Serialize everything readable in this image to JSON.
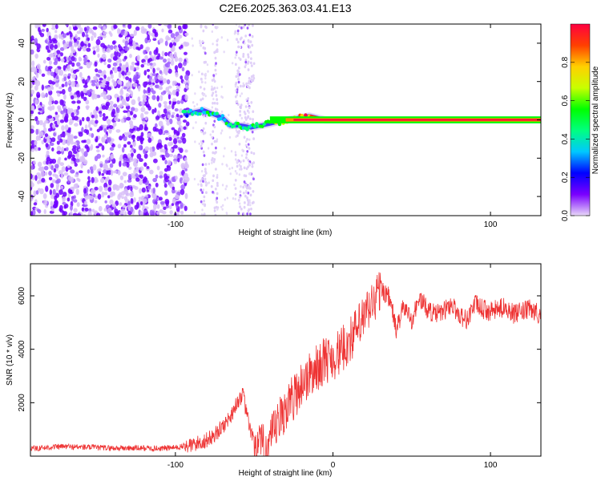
{
  "title": "C2E6.2025.363.03.41.E13",
  "chart_data": [
    {
      "type": "heatmap",
      "name": "spectrogram",
      "xlabel": "Height of straight line (km)",
      "ylabel": "Frequency (Hz)",
      "xlim": [
        -192,
        132
      ],
      "ylim": [
        -50,
        50
      ],
      "x_ticks": [
        -100,
        0,
        100
      ],
      "x_tick_labels": [
        "-100",
        "",
        "100"
      ],
      "y_ticks": [
        -40,
        -20,
        0,
        20,
        40
      ],
      "y_tick_labels": [
        "-40",
        "-20",
        "0",
        "20",
        "40"
      ],
      "colorbar": {
        "label": "Normalized spectral amplitude",
        "range": [
          0,
          1
        ],
        "ticks": [
          0.0,
          0.2,
          0.4,
          0.6,
          0.8
        ],
        "tick_labels": [
          "0.0",
          "0.2",
          "0.4",
          "0.6",
          "0.8"
        ],
        "colors": [
          "#e8d8f8",
          "#7a00ff",
          "#0000ff",
          "#00c8ff",
          "#00ff80",
          "#00ff00",
          "#c8ff00",
          "#ffd000",
          "#ff4000",
          "#ff0040"
        ]
      },
      "noise_band_x": [
        -192,
        -92
      ],
      "sparse_band_x": [
        -90,
        -52
      ],
      "signal_track": [
        {
          "x": -95,
          "f": 3,
          "level": 0.35
        },
        {
          "x": -88,
          "f": 4,
          "level": 0.45
        },
        {
          "x": -82,
          "f": 5,
          "level": 0.5
        },
        {
          "x": -76,
          "f": 3,
          "level": 0.45
        },
        {
          "x": -70,
          "f": 1,
          "level": 0.4
        },
        {
          "x": -65,
          "f": -3,
          "level": 0.45
        },
        {
          "x": -58,
          "f": -3,
          "level": 0.5
        },
        {
          "x": -52,
          "f": -4,
          "level": 0.4
        },
        {
          "x": -46,
          "f": -3,
          "level": 0.55
        },
        {
          "x": -40,
          "f": -2,
          "level": 0.6
        },
        {
          "x": -35,
          "f": -1,
          "level": 0.7
        },
        {
          "x": -28,
          "f": 0,
          "level": 0.8
        },
        {
          "x": -22,
          "f": 1,
          "level": 0.85
        },
        {
          "x": -15,
          "f": 2,
          "level": 0.9
        },
        {
          "x": -10,
          "f": 1,
          "level": 0.95
        },
        {
          "x": -5,
          "f": 0,
          "level": 0.95
        },
        {
          "x": 5,
          "f": 0,
          "level": 0.98
        },
        {
          "x": 132,
          "f": 0,
          "level": 1.0
        }
      ]
    },
    {
      "type": "line",
      "name": "snr",
      "xlabel": "Height of straight line (km)",
      "ylabel": "SNR (10 * v/v)",
      "xlim": [
        -192,
        132
      ],
      "ylim": [
        0,
        7200
      ],
      "x_ticks": [
        -100,
        0,
        100
      ],
      "x_tick_labels": [
        "-100",
        "0",
        "100"
      ],
      "y_ticks": [
        2000,
        4000,
        6000
      ],
      "y_tick_labels": [
        "2000",
        "4000",
        "6000"
      ],
      "color": "#ee3333",
      "series": [
        {
          "name": "SNR",
          "x": [
            -192,
            -180,
            -170,
            -160,
            -150,
            -140,
            -130,
            -120,
            -110,
            -100,
            -90,
            -80,
            -75,
            -70,
            -65,
            -60,
            -57,
            -55,
            -52,
            -50,
            -45,
            -40,
            -35,
            -30,
            -25,
            -20,
            -15,
            -10,
            -5,
            0,
            5,
            10,
            15,
            20,
            25,
            28,
            30,
            35,
            38,
            40,
            45,
            50,
            55,
            60,
            65,
            70,
            75,
            80,
            85,
            90,
            95,
            100,
            105,
            110,
            115,
            120,
            125,
            132
          ],
          "values": [
            280,
            330,
            360,
            340,
            320,
            300,
            300,
            300,
            290,
            320,
            400,
            600,
            800,
            1100,
            1500,
            2100,
            2300,
            1600,
            900,
            500,
            300,
            500,
            1200,
            1800,
            2200,
            2700,
            3000,
            3300,
            3600,
            3700,
            3900,
            4300,
            4700,
            5200,
            5700,
            6000,
            6300,
            6000,
            5400,
            4700,
            5600,
            5100,
            5900,
            5500,
            5300,
            5400,
            5700,
            5300,
            5100,
            5700,
            5500,
            5400,
            5500,
            5600,
            5300,
            5400,
            5500,
            5300
          ]
        }
      ]
    }
  ]
}
